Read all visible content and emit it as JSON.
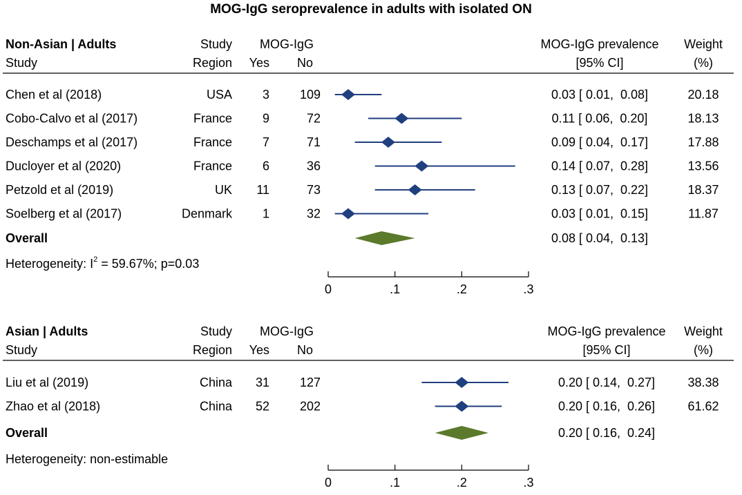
{
  "title": "MOG-IgG seroprevalence in adults with isolated ON",
  "colors": {
    "marker": "#1f3f7f",
    "ci_line": "#1f3f7f",
    "overall": "#5b7a2c",
    "text": "#000000"
  },
  "chart_data": [
    {
      "type": "forest",
      "group": "Non-Asian | Adults",
      "headers": {
        "study_top": "",
        "study": "Study",
        "region_top": "Study",
        "region": "Region",
        "mog_top": "MOG-IgG",
        "yes": "Yes",
        "no": "No",
        "prev_top": "MOG-IgG prevalence",
        "prev": "[95% CI]",
        "weight_top": "Weight",
        "weight": "(%)"
      },
      "xlim": [
        0,
        0.3
      ],
      "ticks": [
        0,
        0.1,
        0.2,
        0.3
      ],
      "tick_labels": [
        "0",
        ".1",
        ".2",
        ".3"
      ],
      "studies": [
        {
          "study": "Chen et al (2018)",
          "region": "USA",
          "yes": "3",
          "no": "109",
          "est": 0.03,
          "lo": 0.01,
          "hi": 0.08,
          "ci_text": "0.03 [ 0.01,  0.08]",
          "weight": "20.18"
        },
        {
          "study": "Cobo-Calvo et al (2017)",
          "region": "France",
          "yes": "9",
          "no": "72",
          "est": 0.11,
          "lo": 0.06,
          "hi": 0.2,
          "ci_text": "0.11 [ 0.06,  0.20]",
          "weight": "18.13"
        },
        {
          "study": "Deschamps et al (2017)",
          "region": "France",
          "yes": "7",
          "no": "71",
          "est": 0.09,
          "lo": 0.04,
          "hi": 0.17,
          "ci_text": "0.09 [ 0.04,  0.17]",
          "weight": "17.88"
        },
        {
          "study": "Ducloyer et al (2020)",
          "region": "France",
          "yes": "6",
          "no": "36",
          "est": 0.14,
          "lo": 0.07,
          "hi": 0.28,
          "ci_text": "0.14 [ 0.07,  0.28]",
          "weight": "13.56"
        },
        {
          "study": "Petzold et al (2019)",
          "region": "UK",
          "yes": "11",
          "no": "73",
          "est": 0.13,
          "lo": 0.07,
          "hi": 0.22,
          "ci_text": "0.13 [ 0.07,  0.22]",
          "weight": "18.37"
        },
        {
          "study": "Soelberg et al (2017)",
          "region": "Denmark",
          "yes": "1",
          "no": "32",
          "est": 0.03,
          "lo": 0.01,
          "hi": 0.15,
          "ci_text": "0.03 [ 0.01,  0.15]",
          "weight": "11.87"
        }
      ],
      "overall": {
        "label": "Overall",
        "est": 0.08,
        "lo": 0.04,
        "hi": 0.13,
        "ci_text": "0.08 [ 0.04,  0.13]"
      },
      "heterogeneity": {
        "prefix": "Heterogeneity: I",
        "sup": "2",
        "suffix": " = 59.67%; p=0.03"
      }
    },
    {
      "type": "forest",
      "group": "Asian | Adults",
      "headers": {
        "study_top": "",
        "study": "Study",
        "region_top": "Study",
        "region": "Region",
        "mog_top": "MOG-IgG",
        "yes": "Yes",
        "no": "No",
        "prev_top": "MOG-IgG prevalence",
        "prev": "[95% CI]",
        "weight_top": "Weight",
        "weight": "(%)"
      },
      "xlim": [
        0,
        0.3
      ],
      "ticks": [
        0,
        0.1,
        0.2,
        0.3
      ],
      "tick_labels": [
        "0",
        ".1",
        ".2",
        ".3"
      ],
      "studies": [
        {
          "study": "Liu et al (2019)",
          "region": "China",
          "yes": "31",
          "no": "127",
          "est": 0.2,
          "lo": 0.14,
          "hi": 0.27,
          "ci_text": "0.20 [ 0.14,  0.27]",
          "weight": "38.38"
        },
        {
          "study": "Zhao et al (2018)",
          "region": "China",
          "yes": "52",
          "no": "202",
          "est": 0.2,
          "lo": 0.16,
          "hi": 0.26,
          "ci_text": "0.20 [ 0.16,  0.26]",
          "weight": "61.62"
        }
      ],
      "overall": {
        "label": "Overall",
        "est": 0.2,
        "lo": 0.16,
        "hi": 0.24,
        "ci_text": "0.20 [ 0.16,  0.24]"
      },
      "heterogeneity": {
        "prefix": "Heterogeneity: non-estimable",
        "sup": "",
        "suffix": ""
      }
    }
  ]
}
